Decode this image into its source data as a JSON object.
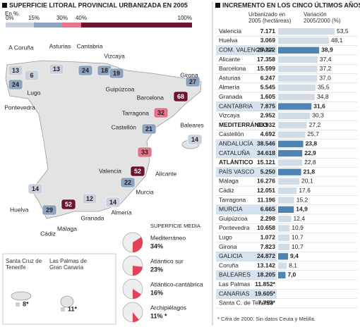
{
  "map": {
    "title": "SUPERFICIE LITORAL PROVINCIAL URBANIZADA EN 2005",
    "unit": "En %.",
    "scale": [
      {
        "value": 0,
        "label": "0%"
      },
      {
        "value": 15,
        "label": "15%"
      },
      {
        "value": 30,
        "label": "30%"
      },
      {
        "value": 40,
        "label": "40%"
      },
      {
        "value": 100,
        "label": "100%"
      }
    ],
    "scale_colors": [
      "#c9d1dc",
      "#8ea3bf",
      "#e5738a",
      "#6a1430"
    ],
    "provinces": [
      {
        "name": "A Coruña",
        "value": 13
      },
      {
        "name": "Asturias",
        "value": 13
      },
      {
        "name": "Cantabria",
        "value": 24
      },
      {
        "name": "Vizcaya",
        "value": 18
      },
      {
        "name": "Guipúzcoa",
        "value": 19
      },
      {
        "name": "Lugo",
        "value": 6
      },
      {
        "name": "Pontevedra",
        "value": 24
      },
      {
        "name": "Girona",
        "value": 27
      },
      {
        "name": "Barcelona",
        "value": 68
      },
      {
        "name": "Tarragona",
        "value": 32
      },
      {
        "name": "Castellón",
        "value": 21
      },
      {
        "name": "Baleares",
        "value": 14
      },
      {
        "name": "Valencia",
        "value": 33
      },
      {
        "name": "Alicante",
        "value": 52
      },
      {
        "name": "Murcia",
        "value": 22
      },
      {
        "name": "Almería",
        "value": 14
      },
      {
        "name": "Granada",
        "value": 12
      },
      {
        "name": "Málaga",
        "value": 52
      },
      {
        "name": "Cádiz",
        "value": 29
      },
      {
        "name": "Huelva",
        "value": 14
      }
    ],
    "islands": [
      {
        "name": "Santa Cruz de Tenerife",
        "value": 8,
        "value_label": "8*"
      },
      {
        "name": "Las Palmas de Gran Canaria",
        "value": 11,
        "value_label": "11*"
      }
    ],
    "average": {
      "title": "SUPERFICIE MEDIA",
      "items": [
        {
          "name": "Mediterráneo",
          "value": 34,
          "value_label": "34%"
        },
        {
          "name": "Atlántico sur",
          "value": 23,
          "value_label": "23%"
        },
        {
          "name": "Atlántico-cantábrica",
          "value": 16,
          "value_label": "16%"
        },
        {
          "name": "Archipiélagos",
          "value": 11,
          "value_label": "11% *"
        }
      ]
    }
  },
  "table": {
    "title": "INCREMENTO EN LOS CINCO ÚLTIMOS AÑOS",
    "headers": [
      "Urbanizado en 2005 (hectáreas)",
      "Variación 2005/2000 (%)"
    ],
    "rows": [
      {
        "name": "Valencia",
        "hectares": "7.171",
        "variation": 53.5,
        "variation_label": "53,5",
        "highlight": false,
        "bold": false
      },
      {
        "name": "Huelva",
        "hectares": "3.069",
        "variation": 48.1,
        "variation_label": "48,1",
        "highlight": false,
        "bold": false
      },
      {
        "name": "COM. VALENCIANA",
        "hectares": "29.222",
        "variation": 38.9,
        "variation_label": "38,9",
        "highlight": true,
        "bold": false
      },
      {
        "name": "Alicante",
        "hectares": "17.358",
        "variation": 37.4,
        "variation_label": "37,4",
        "highlight": false,
        "bold": false
      },
      {
        "name": "Barcelona",
        "hectares": "15.599",
        "variation": 37.2,
        "variation_label": "37,2",
        "highlight": false,
        "bold": false
      },
      {
        "name": "Asturias",
        "hectares": "6.247",
        "variation": 37.0,
        "variation_label": "37,0",
        "highlight": false,
        "bold": false
      },
      {
        "name": "Almería",
        "hectares": "5.545",
        "variation": 35.5,
        "variation_label": "35,5",
        "highlight": false,
        "bold": false
      },
      {
        "name": "Granada",
        "hectares": "1.605",
        "variation": 34.8,
        "variation_label": "34,8",
        "highlight": false,
        "bold": false
      },
      {
        "name": "CANTABRIA",
        "hectares": "7.875",
        "variation": 31.6,
        "variation_label": "31,6",
        "highlight": true,
        "bold": false
      },
      {
        "name": "Vizcaya",
        "hectares": "2.952",
        "variation": 30.3,
        "variation_label": "30,3",
        "highlight": false,
        "bold": false
      },
      {
        "name": "MEDITERRÁNEO",
        "hectares": "93.932",
        "variation": 27.2,
        "variation_label": "27,2",
        "highlight": false,
        "bold": true
      },
      {
        "name": "Castellón",
        "hectares": "4.692",
        "variation": 25.7,
        "variation_label": "25,7",
        "highlight": false,
        "bold": false
      },
      {
        "name": "ANDALUCÍA",
        "hectares": "38.546",
        "variation": 23.8,
        "variation_label": "23,8",
        "highlight": true,
        "bold": false
      },
      {
        "name": "CATALUÑA",
        "hectares": "34.618",
        "variation": 22.9,
        "variation_label": "22,9",
        "highlight": true,
        "bold": false
      },
      {
        "name": "ATLÁNTICO",
        "hectares": "15.121",
        "variation": 22.8,
        "variation_label": "22,8",
        "highlight": false,
        "bold": true
      },
      {
        "name": "PAÍS VASCO",
        "hectares": "5.250",
        "variation": 21.8,
        "variation_label": "21,8",
        "highlight": true,
        "bold": false
      },
      {
        "name": "Málaga",
        "hectares": "16.276",
        "variation": 20.1,
        "variation_label": "20,1",
        "highlight": false,
        "bold": false
      },
      {
        "name": "Cádiz",
        "hectares": "12.051",
        "variation": 17.6,
        "variation_label": "17,6",
        "highlight": false,
        "bold": false
      },
      {
        "name": "Tarragona",
        "hectares": "11.196",
        "variation": 15.2,
        "variation_label": "15,2",
        "highlight": false,
        "bold": false
      },
      {
        "name": "MURCIA",
        "hectares": "6.665",
        "variation": 14.9,
        "variation_label": "14,9",
        "highlight": true,
        "bold": false
      },
      {
        "name": "Guipúzcoa",
        "hectares": "2.298",
        "variation": 12.4,
        "variation_label": "12,4",
        "highlight": false,
        "bold": false
      },
      {
        "name": "Pontevedra",
        "hectares": "10.658",
        "variation": 10.9,
        "variation_label": "10,9",
        "highlight": false,
        "bold": false
      },
      {
        "name": "Lugo",
        "hectares": "1.072",
        "variation": 10.7,
        "variation_label": "10,7",
        "highlight": false,
        "bold": false
      },
      {
        "name": "Girona",
        "hectares": "7.823",
        "variation": 10.7,
        "variation_label": "10,7",
        "highlight": false,
        "bold": false
      },
      {
        "name": "GALICIA",
        "hectares": "24.872",
        "variation": 9.4,
        "variation_label": "9,4",
        "highlight": true,
        "bold": false
      },
      {
        "name": "Coruña",
        "hectares": "13.142",
        "variation": 8.1,
        "variation_label": "8,1",
        "highlight": false,
        "bold": false
      },
      {
        "name": "BALEARES",
        "hectares": "18.205",
        "variation": 7.0,
        "variation_label": "7,0",
        "highlight": true,
        "bold": false
      },
      {
        "name": "Las Palmas",
        "hectares": "11.852*",
        "variation": null,
        "variation_label": null,
        "highlight": false,
        "bold": false
      },
      {
        "name": "CANARIAS",
        "hectares": "19.605*",
        "variation": null,
        "variation_label": null,
        "highlight": true,
        "bold": false
      },
      {
        "name": "Santa C. de Tenerife",
        "hectares": "7.753*",
        "variation": null,
        "variation_label": null,
        "highlight": false,
        "bold": false
      }
    ],
    "footnote": "* Cifra de 2000. Sin datos Ceuta y Melilla."
  }
}
